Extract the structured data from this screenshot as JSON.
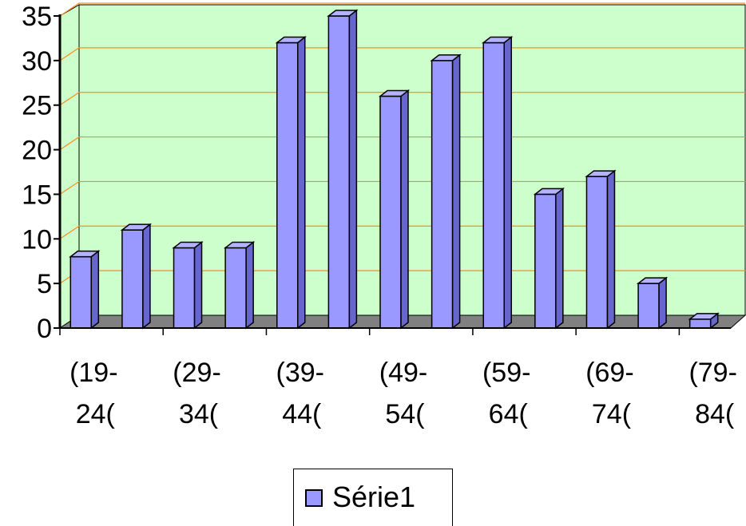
{
  "chart_data": {
    "type": "bar",
    "style": "3d-column",
    "categories": [
      "(19-24(",
      "",
      "(29-34(",
      "",
      "(39-44(",
      "",
      "(49-54(",
      "",
      "(59-64(",
      "",
      "(69-74(",
      "",
      "(79-84("
    ],
    "category_label_lines": [
      [
        "(19-",
        "24("
      ],
      [
        "(29-",
        "34("
      ],
      [
        "(39-",
        "44("
      ],
      [
        "(49-",
        "54("
      ],
      [
        "(59-",
        "64("
      ],
      [
        "(69-",
        "74("
      ],
      [
        "(79-",
        "84("
      ]
    ],
    "series": [
      {
        "name": "Série1",
        "values": [
          8,
          11,
          9,
          9,
          32,
          35,
          26,
          30,
          32,
          15,
          17,
          5,
          1
        ]
      }
    ],
    "ylim": [
      0,
      35
    ],
    "yticks": [
      "0",
      "5",
      "10",
      "15",
      "20",
      "25",
      "30",
      "35"
    ],
    "grid": true,
    "legend": "bottom",
    "colors": {
      "plot_background": "#ccffcc",
      "floor": "#808080",
      "gridline": "#ff8c1a",
      "bar_front": "#9999ff",
      "bar_side": "#6666cc",
      "bar_top": "#b3b3ff"
    }
  },
  "legend": {
    "label": "Série1"
  }
}
